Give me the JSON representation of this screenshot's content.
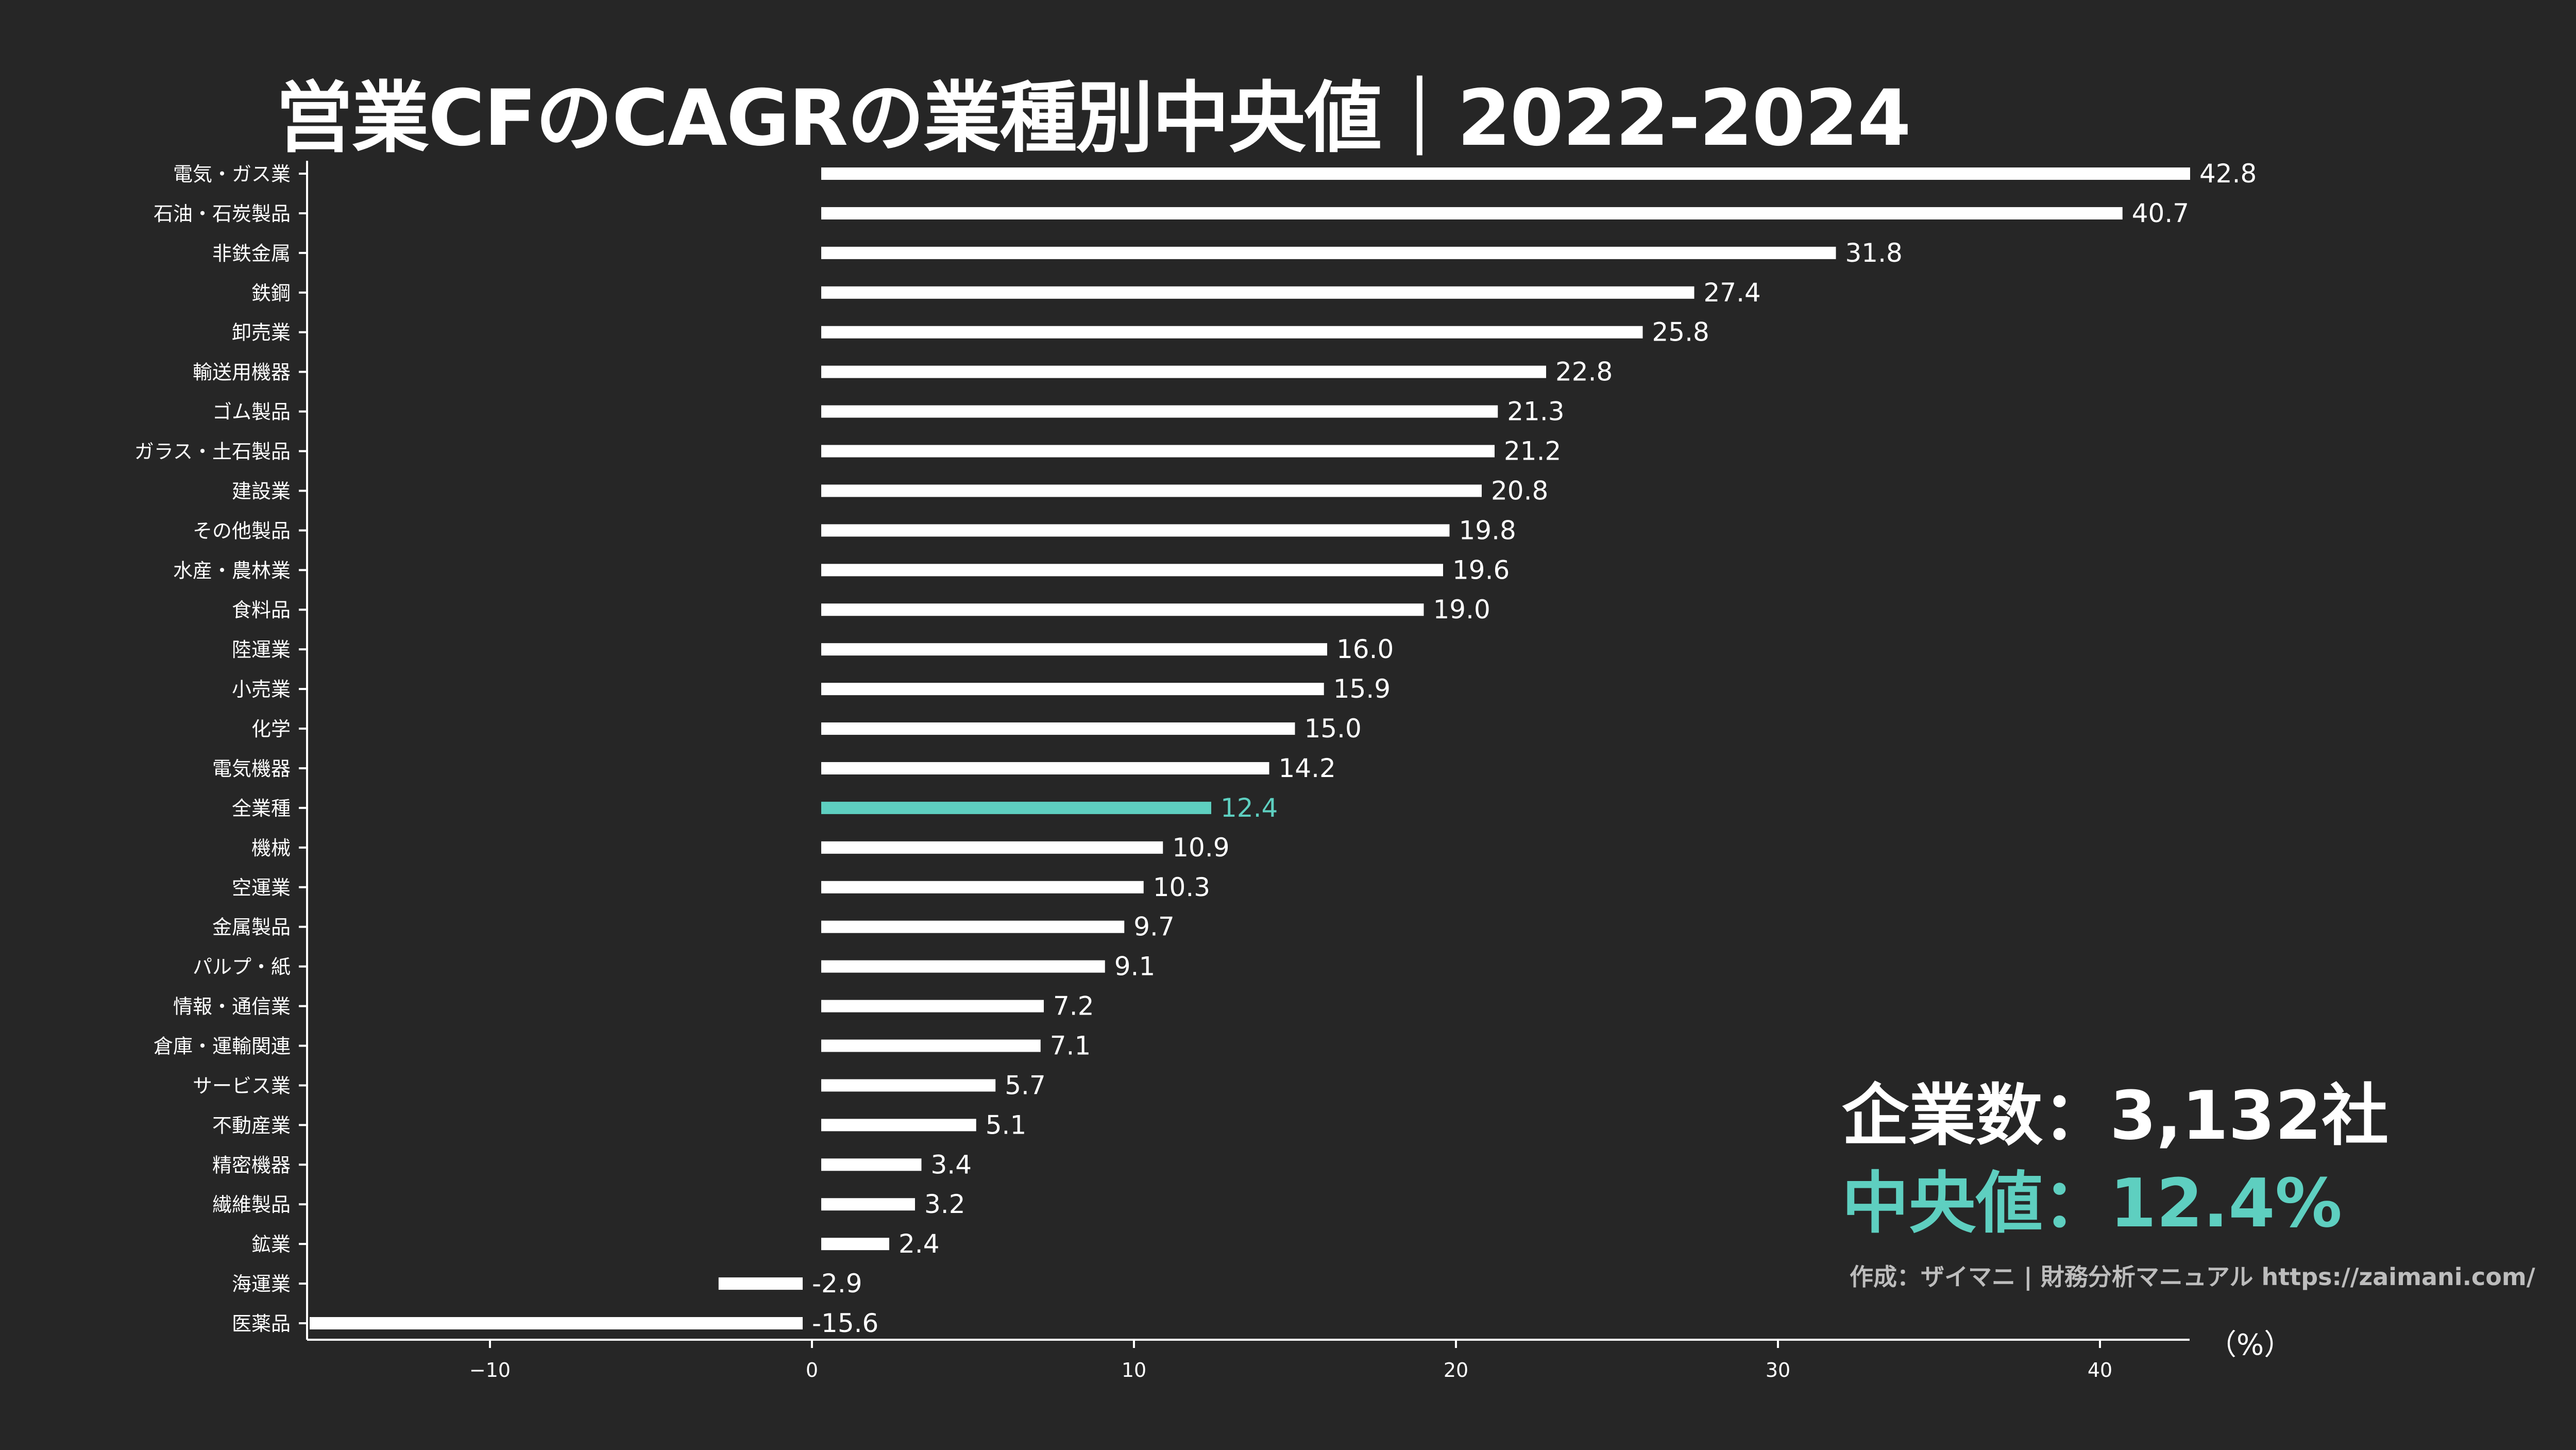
{
  "title": "営業CFのCAGRの業種別中央値｜2022-2024",
  "stats": {
    "company_count_label": "企業数：3,132社",
    "median_label": "中央値：12.4%"
  },
  "credit": "作成：ザイマニ | 財務分析マニュアル https://zaimani.com/",
  "unit_label": "（%）",
  "colors": {
    "background": "#262626",
    "bar": "#ffffff",
    "highlight": "#5ecfc0",
    "text": "#ffffff",
    "credit": "#bdbdbd"
  },
  "chart_data": {
    "type": "bar",
    "orientation": "horizontal",
    "xlim": [
      -15.6,
      42.8
    ],
    "xticks": [
      -10,
      0,
      10,
      20,
      30,
      40
    ],
    "xtick_labels": [
      "−10",
      "0",
      "10",
      "20",
      "30",
      "40"
    ],
    "highlight_category": "全業種",
    "categories": [
      "電気・ガス業",
      "石油・石炭製品",
      "非鉄金属",
      "鉄鋼",
      "卸売業",
      "輸送用機器",
      "ゴム製品",
      "ガラス・土石製品",
      "建設業",
      "その他製品",
      "水産・農林業",
      "食料品",
      "陸運業",
      "小売業",
      "化学",
      "電気機器",
      "全業種",
      "機械",
      "空運業",
      "金属製品",
      "パルプ・紙",
      "情報・通信業",
      "倉庫・運輸関連",
      "サービス業",
      "不動産業",
      "精密機器",
      "繊維製品",
      "鉱業",
      "海運業",
      "医薬品"
    ],
    "values": [
      42.8,
      40.7,
      31.8,
      27.4,
      25.8,
      22.8,
      21.3,
      21.2,
      20.8,
      19.8,
      19.6,
      19.0,
      16.0,
      15.9,
      15.0,
      14.2,
      12.4,
      10.9,
      10.3,
      9.7,
      9.1,
      7.2,
      7.1,
      5.7,
      5.1,
      3.4,
      3.2,
      2.4,
      -2.9,
      -15.6
    ],
    "value_labels": [
      "42.8",
      "40.7",
      "31.8",
      "27.4",
      "25.8",
      "22.8",
      "21.3",
      "21.2",
      "20.8",
      "19.8",
      "19.6",
      "19.0",
      "16.0",
      "15.9",
      "15.0",
      "14.2",
      "12.4",
      "10.9",
      "10.3",
      "9.7",
      "9.1",
      "7.2",
      "7.1",
      "5.7",
      "5.1",
      "3.4",
      "3.2",
      "2.4",
      "-2.9",
      "-15.6"
    ]
  }
}
